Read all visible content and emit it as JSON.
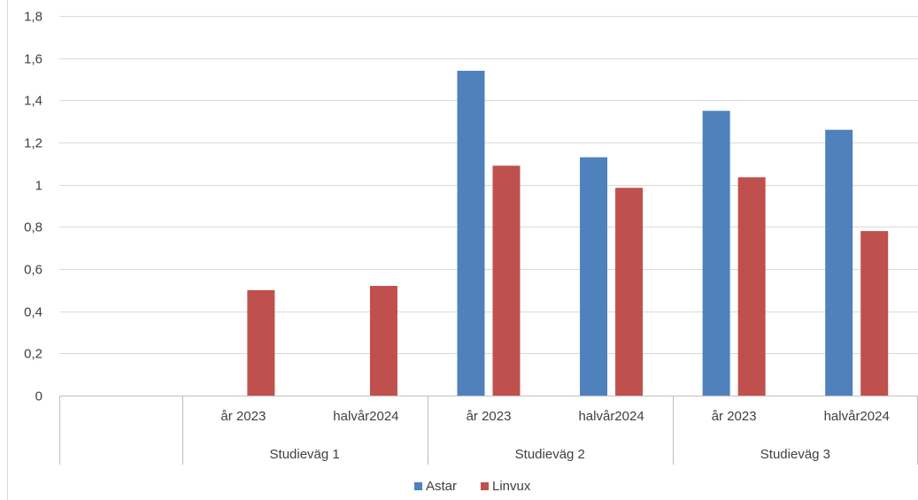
{
  "chart_data": {
    "type": "bar",
    "title": "",
    "xlabel": "",
    "ylabel": "",
    "ylim": [
      0,
      1.8
    ],
    "y_ticks": [
      "0",
      "0,2",
      "0,4",
      "0,6",
      "0,8",
      "1",
      "1,2",
      "1,4",
      "1,6",
      "1,8"
    ],
    "grid": true,
    "legend_position": "bottom",
    "groups": [
      "",
      "Studieväg 1",
      "Studieväg 2",
      "Studieväg 3"
    ],
    "categories": [
      {
        "group": "",
        "label": ""
      },
      {
        "group": "Studieväg 1",
        "label": "år 2023"
      },
      {
        "group": "Studieväg 1",
        "label": "halvår2024"
      },
      {
        "group": "Studieväg 2",
        "label": "år 2023"
      },
      {
        "group": "Studieväg 2",
        "label": "halvår2024"
      },
      {
        "group": "Studieväg 3",
        "label": "år 2023"
      },
      {
        "group": "Studieväg 3",
        "label": "halvår2024"
      }
    ],
    "series": [
      {
        "name": "Astar",
        "color": "#4f81bd",
        "values": [
          null,
          null,
          null,
          1.54,
          1.13,
          1.35,
          1.26
        ]
      },
      {
        "name": "Linvux",
        "color": "#c0504d",
        "values": [
          null,
          0.5,
          0.52,
          1.09,
          0.985,
          1.035,
          0.78
        ]
      }
    ]
  }
}
